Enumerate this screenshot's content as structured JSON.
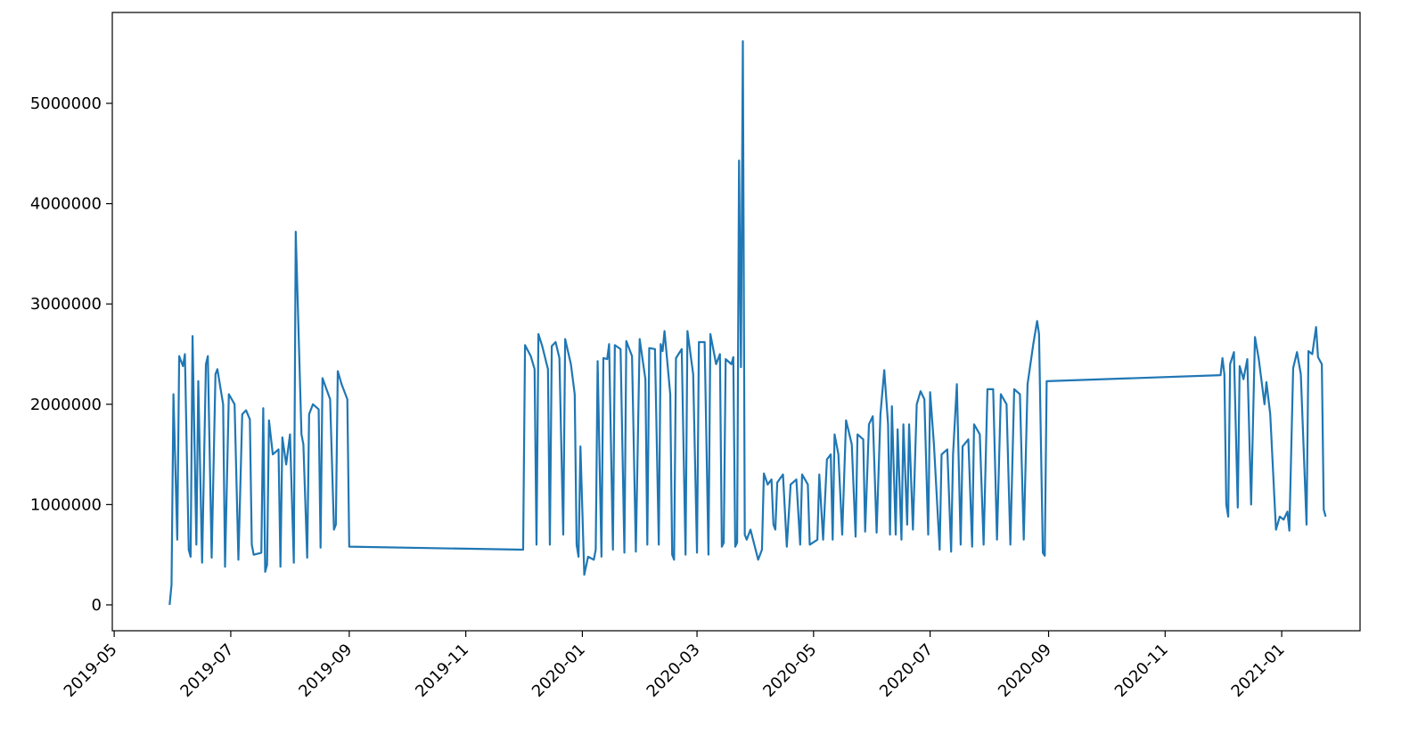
{
  "chart_data": {
    "type": "line",
    "color": "#1f77b4",
    "x": [
      "2019-05-30",
      "2019-05-31",
      "2019-06-01",
      "2019-06-03",
      "2019-06-04",
      "2019-06-06",
      "2019-06-07",
      "2019-06-09",
      "2019-06-10",
      "2019-06-11",
      "2019-06-13",
      "2019-06-14",
      "2019-06-16",
      "2019-06-18",
      "2019-06-19",
      "2019-06-21",
      "2019-06-23",
      "2019-06-24",
      "2019-06-27",
      "2019-06-28",
      "2019-06-30",
      "2019-07-03",
      "2019-07-05",
      "2019-07-07",
      "2019-07-09",
      "2019-07-11",
      "2019-07-12",
      "2019-07-13",
      "2019-07-17",
      "2019-07-18",
      "2019-07-19",
      "2019-07-20",
      "2019-07-21",
      "2019-07-23",
      "2019-07-26",
      "2019-07-27",
      "2019-07-28",
      "2019-07-30",
      "2019-08-01",
      "2019-08-03",
      "2019-08-04",
      "2019-08-07",
      "2019-08-08",
      "2019-08-10",
      "2019-08-11",
      "2019-08-13",
      "2019-08-16",
      "2019-08-17",
      "2019-08-18",
      "2019-08-22",
      "2019-08-24",
      "2019-08-25",
      "2019-08-26",
      "2019-08-28",
      "2019-08-31",
      "2019-09-01",
      "2019-12-01",
      "2019-12-02",
      "2019-12-05",
      "2019-12-07",
      "2019-12-08",
      "2019-12-09",
      "2019-12-11",
      "2019-12-14",
      "2019-12-15",
      "2019-12-16",
      "2019-12-18",
      "2019-12-20",
      "2019-12-22",
      "2019-12-23",
      "2019-12-26",
      "2019-12-28",
      "2019-12-29",
      "2019-12-30",
      "2019-12-31",
      "2020-01-02",
      "2020-01-04",
      "2020-01-07",
      "2020-01-08",
      "2020-01-09",
      "2020-01-11",
      "2020-01-12",
      "2020-01-14",
      "2020-01-15",
      "2020-01-17",
      "2020-01-18",
      "2020-01-21",
      "2020-01-23",
      "2020-01-24",
      "2020-01-27",
      "2020-01-29",
      "2020-01-31",
      "2020-02-03",
      "2020-02-04",
      "2020-02-05",
      "2020-02-08",
      "2020-02-10",
      "2020-02-11",
      "2020-02-12",
      "2020-02-13",
      "2020-02-16",
      "2020-02-17",
      "2020-02-18",
      "2020-02-19",
      "2020-02-22",
      "2020-02-24",
      "2020-02-25",
      "2020-02-28",
      "2020-03-01",
      "2020-03-02",
      "2020-03-05",
      "2020-03-07",
      "2020-03-08",
      "2020-03-11",
      "2020-03-13",
      "2020-03-14",
      "2020-03-15",
      "2020-03-16",
      "2020-03-19",
      "2020-03-20",
      "2020-03-21",
      "2020-03-22",
      "2020-03-23",
      "2020-03-24",
      "2020-03-25",
      "2020-03-26",
      "2020-03-27",
      "2020-03-29",
      "2020-03-31",
      "2020-04-02",
      "2020-04-04",
      "2020-04-05",
      "2020-04-07",
      "2020-04-09",
      "2020-04-10",
      "2020-04-11",
      "2020-04-12",
      "2020-04-15",
      "2020-04-17",
      "2020-04-19",
      "2020-04-22",
      "2020-04-24",
      "2020-04-25",
      "2020-04-28",
      "2020-04-29",
      "2020-05-03",
      "2020-05-04",
      "2020-05-06",
      "2020-05-08",
      "2020-05-10",
      "2020-05-11",
      "2020-05-12",
      "2020-05-14",
      "2020-05-16",
      "2020-05-18",
      "2020-05-21",
      "2020-05-23",
      "2020-05-24",
      "2020-05-27",
      "2020-05-28",
      "2020-05-30",
      "2020-06-01",
      "2020-06-03",
      "2020-06-05",
      "2020-06-07",
      "2020-06-09",
      "2020-06-10",
      "2020-06-11",
      "2020-06-13",
      "2020-06-14",
      "2020-06-16",
      "2020-06-17",
      "2020-06-19",
      "2020-06-20",
      "2020-06-22",
      "2020-06-24",
      "2020-06-26",
      "2020-06-28",
      "2020-06-30",
      "2020-07-01",
      "2020-07-03",
      "2020-07-06",
      "2020-07-07",
      "2020-07-10",
      "2020-07-12",
      "2020-07-13",
      "2020-07-15",
      "2020-07-17",
      "2020-07-18",
      "2020-07-21",
      "2020-07-23",
      "2020-07-24",
      "2020-07-27",
      "2020-07-29",
      "2020-07-31",
      "2020-08-03",
      "2020-08-05",
      "2020-08-07",
      "2020-08-10",
      "2020-08-12",
      "2020-08-14",
      "2020-08-17",
      "2020-08-19",
      "2020-08-21",
      "2020-08-24",
      "2020-08-26",
      "2020-08-27",
      "2020-08-29",
      "2020-08-30",
      "2020-08-31",
      "2020-11-30",
      "2020-12-01",
      "2020-12-02",
      "2020-12-03",
      "2020-12-04",
      "2020-12-05",
      "2020-12-07",
      "2020-12-09",
      "2020-12-10",
      "2020-12-12",
      "2020-12-14",
      "2020-12-16",
      "2020-12-18",
      "2020-12-20",
      "2020-12-23",
      "2020-12-24",
      "2020-12-26",
      "2020-12-29",
      "2020-12-31",
      "2021-01-02",
      "2021-01-04",
      "2021-01-05",
      "2021-01-07",
      "2021-01-09",
      "2021-01-11",
      "2021-01-14",
      "2021-01-15",
      "2021-01-17",
      "2021-01-19",
      "2021-01-20",
      "2021-01-22",
      "2021-01-23",
      "2021-01-24"
    ],
    "values": [
      0,
      200000,
      2100000,
      650000,
      2480000,
      2380000,
      2500000,
      550000,
      480000,
      2680000,
      600000,
      2230000,
      420000,
      2400000,
      2480000,
      470000,
      2300000,
      2350000,
      2000000,
      380000,
      2100000,
      2000000,
      450000,
      1900000,
      1940000,
      1850000,
      600000,
      500000,
      520000,
      1960000,
      330000,
      400000,
      1840000,
      1500000,
      1550000,
      380000,
      1670000,
      1400000,
      1700000,
      420000,
      3720000,
      1700000,
      1600000,
      470000,
      1900000,
      2000000,
      1950000,
      570000,
      2260000,
      2050000,
      750000,
      800000,
      2330000,
      2200000,
      2050000,
      580000,
      550000,
      2590000,
      2480000,
      2350000,
      600000,
      2700000,
      2580000,
      2350000,
      600000,
      2580000,
      2620000,
      2460000,
      700000,
      2650000,
      2400000,
      2100000,
      600000,
      480000,
      1580000,
      300000,
      480000,
      450000,
      550000,
      2430000,
      480000,
      2460000,
      2450000,
      2600000,
      550000,
      2590000,
      2550000,
      520000,
      2630000,
      2480000,
      530000,
      2650000,
      2250000,
      600000,
      2560000,
      2550000,
      600000,
      2600000,
      2530000,
      2730000,
      2100000,
      500000,
      450000,
      2460000,
      2550000,
      500000,
      2730000,
      2300000,
      520000,
      2620000,
      2620000,
      500000,
      2700000,
      2400000,
      2500000,
      580000,
      620000,
      2450000,
      2400000,
      2470000,
      580000,
      620000,
      4430000,
      2370000,
      5620000,
      700000,
      650000,
      750000,
      600000,
      450000,
      550000,
      1310000,
      1200000,
      1250000,
      800000,
      750000,
      1220000,
      1300000,
      580000,
      1200000,
      1250000,
      600000,
      1300000,
      1200000,
      600000,
      650000,
      1300000,
      650000,
      1450000,
      1500000,
      650000,
      1700000,
      1500000,
      700000,
      1840000,
      1600000,
      680000,
      1700000,
      1650000,
      730000,
      1800000,
      1880000,
      720000,
      1900000,
      2340000,
      1800000,
      700000,
      1980000,
      700000,
      1750000,
      650000,
      1800000,
      800000,
      1800000,
      750000,
      2000000,
      2130000,
      2050000,
      700000,
      2120000,
      1600000,
      550000,
      1500000,
      1550000,
      530000,
      1500000,
      2200000,
      600000,
      1580000,
      1650000,
      580000,
      1800000,
      1700000,
      600000,
      2150000,
      2150000,
      650000,
      2100000,
      2000000,
      600000,
      2150000,
      2100000,
      650000,
      2200000,
      2600000,
      2830000,
      2700000,
      520000,
      490000,
      2230000,
      2290000,
      2460000,
      2300000,
      1000000,
      880000,
      2400000,
      2520000,
      970000,
      2380000,
      2250000,
      2450000,
      1000000,
      2670000,
      2450000,
      2000000,
      2220000,
      1900000,
      750000,
      880000,
      850000,
      930000,
      740000,
      2360000,
      2520000,
      2300000,
      800000,
      2530000,
      2500000,
      2770000,
      2470000,
      2400000,
      950000,
      880000
    ],
    "xlim": [
      "2019-04-30",
      "2021-02-11"
    ],
    "xticks": [
      {
        "value": "2019-05-01",
        "label": "2019-05"
      },
      {
        "value": "2019-07-01",
        "label": "2019-07"
      },
      {
        "value": "2019-09-01",
        "label": "2019-09"
      },
      {
        "value": "2019-11-01",
        "label": "2019-11"
      },
      {
        "value": "2020-01-01",
        "label": "2020-01"
      },
      {
        "value": "2020-03-01",
        "label": "2020-03"
      },
      {
        "value": "2020-05-01",
        "label": "2020-05"
      },
      {
        "value": "2020-07-01",
        "label": "2020-07"
      },
      {
        "value": "2020-09-01",
        "label": "2020-09"
      },
      {
        "value": "2020-11-01",
        "label": "2020-11"
      },
      {
        "value": "2021-01-01",
        "label": "2021-01"
      }
    ],
    "ylim": [
      -258000,
      5906000
    ],
    "yticks": [
      0,
      1000000,
      2000000,
      3000000,
      4000000,
      5000000
    ]
  }
}
